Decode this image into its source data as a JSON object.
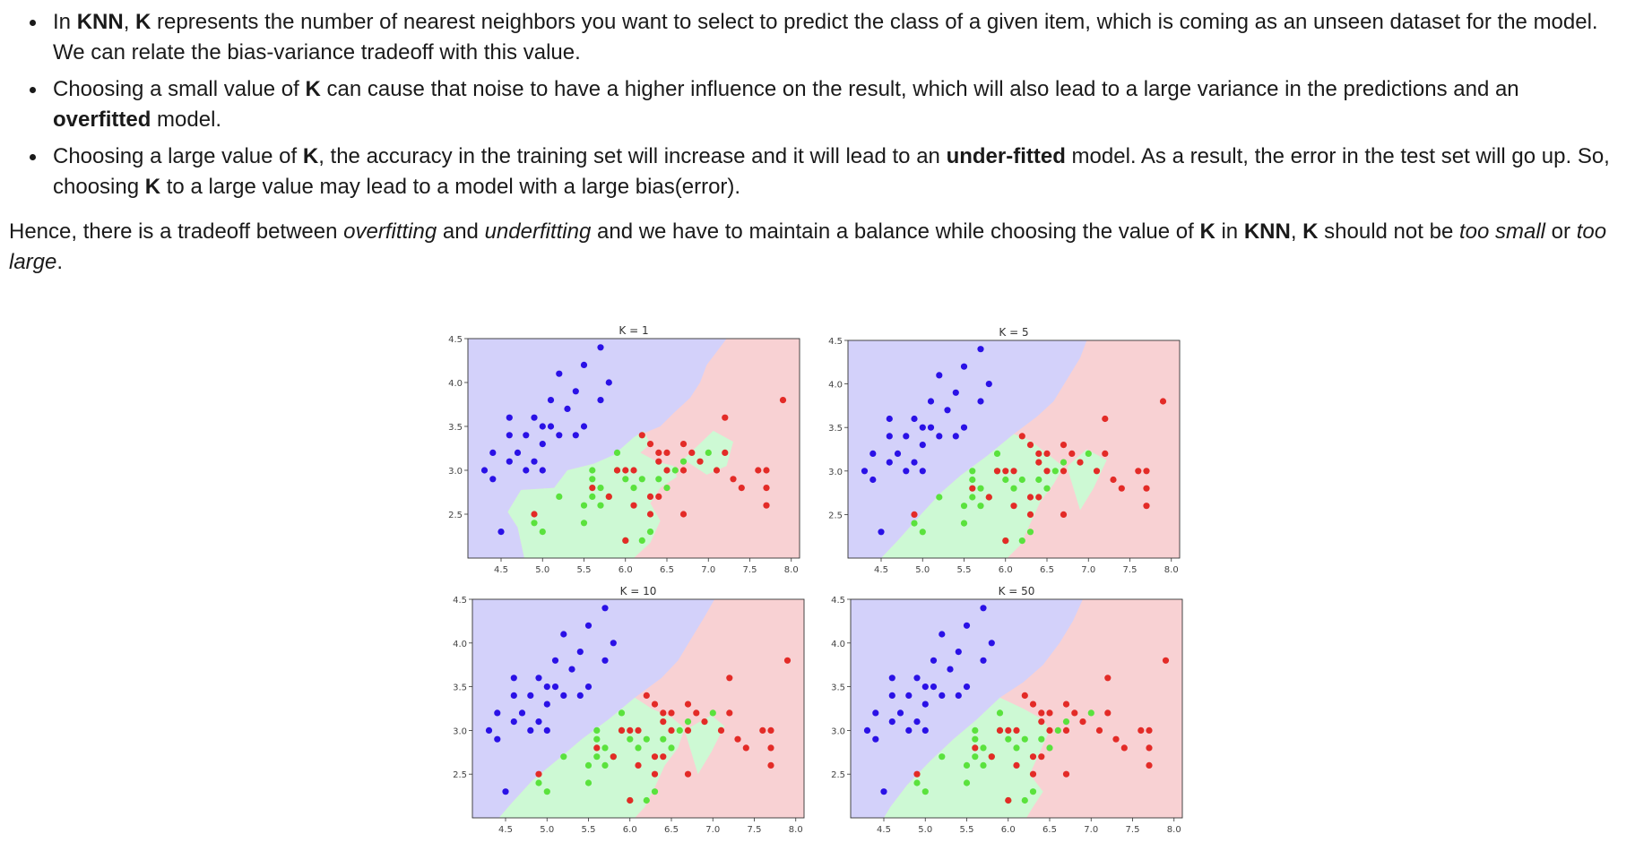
{
  "text": {
    "b1": {
      "s1": "In ",
      "k1": "KNN",
      "s2": ", ",
      "k2": "K",
      "s3": " represents the number of nearest neighbors you want to select to predict the class of a given item, which is coming as an unseen dataset for the model. We can relate the bias-variance tradeoff with this value."
    },
    "b2": {
      "s1": "Choosing a small value of ",
      "k1": "K",
      "s2": " can cause that noise to have a higher influence on the result, which will also lead to a large variance in the predictions and an ",
      "k2": "overfitted",
      "s3": " model."
    },
    "b3": {
      "s1": "Choosing a large value of ",
      "k1": "K",
      "s2": ", the accuracy in the training set will increase and it will lead to an ",
      "k2": "under-fitted",
      "s3": " model. As a result, the error in the test set will go up. So, choosing ",
      "k3": "K",
      "s4": " to a large value may lead to a model with a large bias(error)."
    },
    "para": {
      "s1": "Hence, there is a tradeoff between ",
      "i1": "overfitting",
      "s2": " and ",
      "i2": "underfitting",
      "s3": " and we have to maintain a balance while choosing the value of ",
      "k1": "K",
      "s4": " in ",
      "k2": "KNN",
      "s5": ", ",
      "k3": "K",
      "s6": " should not be ",
      "i3": "too small",
      "s7": " or ",
      "i4": "too large",
      "s8": "."
    }
  },
  "colors": {
    "region_blue": "#d3d1fa",
    "region_green": "#cdf9d4",
    "region_red": "#f8d1d3",
    "point_blue": "#2a11e6",
    "point_green": "#5ae23d",
    "point_red": "#e32b27"
  },
  "chart_data": [
    {
      "type": "scatter",
      "title": "K = 1",
      "xlim": [
        4.1,
        8.1
      ],
      "ylim": [
        2.0,
        4.5
      ],
      "xticks": [
        "4.5",
        "5.0",
        "5.5",
        "6.0",
        "6.5",
        "7.0",
        "7.5",
        "8.0"
      ],
      "yticks": [
        "2.5",
        "3.0",
        "3.5",
        "4.0",
        "4.5"
      ]
    },
    {
      "type": "scatter",
      "title": "K = 5",
      "xlim": [
        4.1,
        8.1
      ],
      "ylim": [
        2.0,
        4.5
      ],
      "xticks": [
        "4.5",
        "5.0",
        "5.5",
        "6.0",
        "6.5",
        "7.0",
        "7.5",
        "8.0"
      ],
      "yticks": [
        "2.5",
        "3.0",
        "3.5",
        "4.0",
        "4.5"
      ]
    },
    {
      "type": "scatter",
      "title": "K = 10",
      "xlim": [
        4.1,
        8.1
      ],
      "ylim": [
        2.0,
        4.5
      ],
      "xticks": [
        "4.5",
        "5.0",
        "5.5",
        "6.0",
        "6.5",
        "7.0",
        "7.5",
        "8.0"
      ],
      "yticks": [
        "2.5",
        "3.0",
        "3.5",
        "4.0",
        "4.5"
      ]
    },
    {
      "type": "scatter",
      "title": "K = 50",
      "xlim": [
        4.1,
        8.1
      ],
      "ylim": [
        2.0,
        4.5
      ],
      "xticks": [
        "4.5",
        "5.0",
        "5.5",
        "6.0",
        "6.5",
        "7.0",
        "7.5",
        "8.0"
      ],
      "yticks": [
        "2.5",
        "3.0",
        "3.5",
        "4.0",
        "4.5"
      ]
    }
  ],
  "points": {
    "blue": [
      [
        4.3,
        3.0
      ],
      [
        4.4,
        2.9
      ],
      [
        4.4,
        3.2
      ],
      [
        4.5,
        2.3
      ],
      [
        4.6,
        3.1
      ],
      [
        4.6,
        3.4
      ],
      [
        4.6,
        3.6
      ],
      [
        4.7,
        3.2
      ],
      [
        4.8,
        3.0
      ],
      [
        4.8,
        3.4
      ],
      [
        4.9,
        3.1
      ],
      [
        4.9,
        3.6
      ],
      [
        5.0,
        3.0
      ],
      [
        5.0,
        3.3
      ],
      [
        5.0,
        3.5
      ],
      [
        5.1,
        3.5
      ],
      [
        5.1,
        3.8
      ],
      [
        5.2,
        3.4
      ],
      [
        5.2,
        4.1
      ],
      [
        5.3,
        3.7
      ],
      [
        5.4,
        3.4
      ],
      [
        5.4,
        3.9
      ],
      [
        5.5,
        3.5
      ],
      [
        5.5,
        4.2
      ],
      [
        5.7,
        3.8
      ],
      [
        5.7,
        4.4
      ],
      [
        5.8,
        4.0
      ]
    ],
    "green": [
      [
        4.9,
        2.4
      ],
      [
        5.0,
        2.3
      ],
      [
        5.2,
        2.7
      ],
      [
        5.5,
        2.4
      ],
      [
        5.5,
        2.6
      ],
      [
        5.6,
        2.7
      ],
      [
        5.6,
        2.9
      ],
      [
        5.6,
        3.0
      ],
      [
        5.7,
        2.6
      ],
      [
        5.7,
        2.8
      ],
      [
        5.8,
        2.7
      ],
      [
        5.9,
        3.0
      ],
      [
        5.9,
        3.2
      ],
      [
        6.0,
        2.2
      ],
      [
        6.0,
        2.9
      ],
      [
        6.1,
        2.8
      ],
      [
        6.2,
        2.2
      ],
      [
        6.2,
        2.9
      ],
      [
        6.3,
        2.3
      ],
      [
        6.4,
        2.9
      ],
      [
        6.5,
        2.8
      ],
      [
        6.6,
        3.0
      ],
      [
        6.7,
        3.1
      ],
      [
        7.0,
        3.2
      ]
    ],
    "red": [
      [
        4.9,
        2.5
      ],
      [
        5.6,
        2.8
      ],
      [
        5.8,
        2.7
      ],
      [
        5.9,
        3.0
      ],
      [
        6.0,
        2.2
      ],
      [
        6.0,
        3.0
      ],
      [
        6.1,
        2.6
      ],
      [
        6.1,
        3.0
      ],
      [
        6.2,
        3.4
      ],
      [
        6.3,
        2.5
      ],
      [
        6.3,
        2.7
      ],
      [
        6.3,
        3.3
      ],
      [
        6.4,
        2.7
      ],
      [
        6.4,
        3.1
      ],
      [
        6.4,
        3.2
      ],
      [
        6.5,
        3.0
      ],
      [
        6.5,
        3.2
      ],
      [
        6.7,
        2.5
      ],
      [
        6.7,
        3.0
      ],
      [
        6.7,
        3.3
      ],
      [
        6.8,
        3.2
      ],
      [
        6.9,
        3.1
      ],
      [
        7.1,
        3.0
      ],
      [
        7.2,
        3.2
      ],
      [
        7.2,
        3.6
      ],
      [
        7.3,
        2.9
      ],
      [
        7.4,
        2.8
      ],
      [
        7.6,
        3.0
      ],
      [
        7.7,
        2.6
      ],
      [
        7.7,
        2.8
      ],
      [
        7.7,
        3.0
      ],
      [
        7.9,
        3.8
      ]
    ]
  }
}
